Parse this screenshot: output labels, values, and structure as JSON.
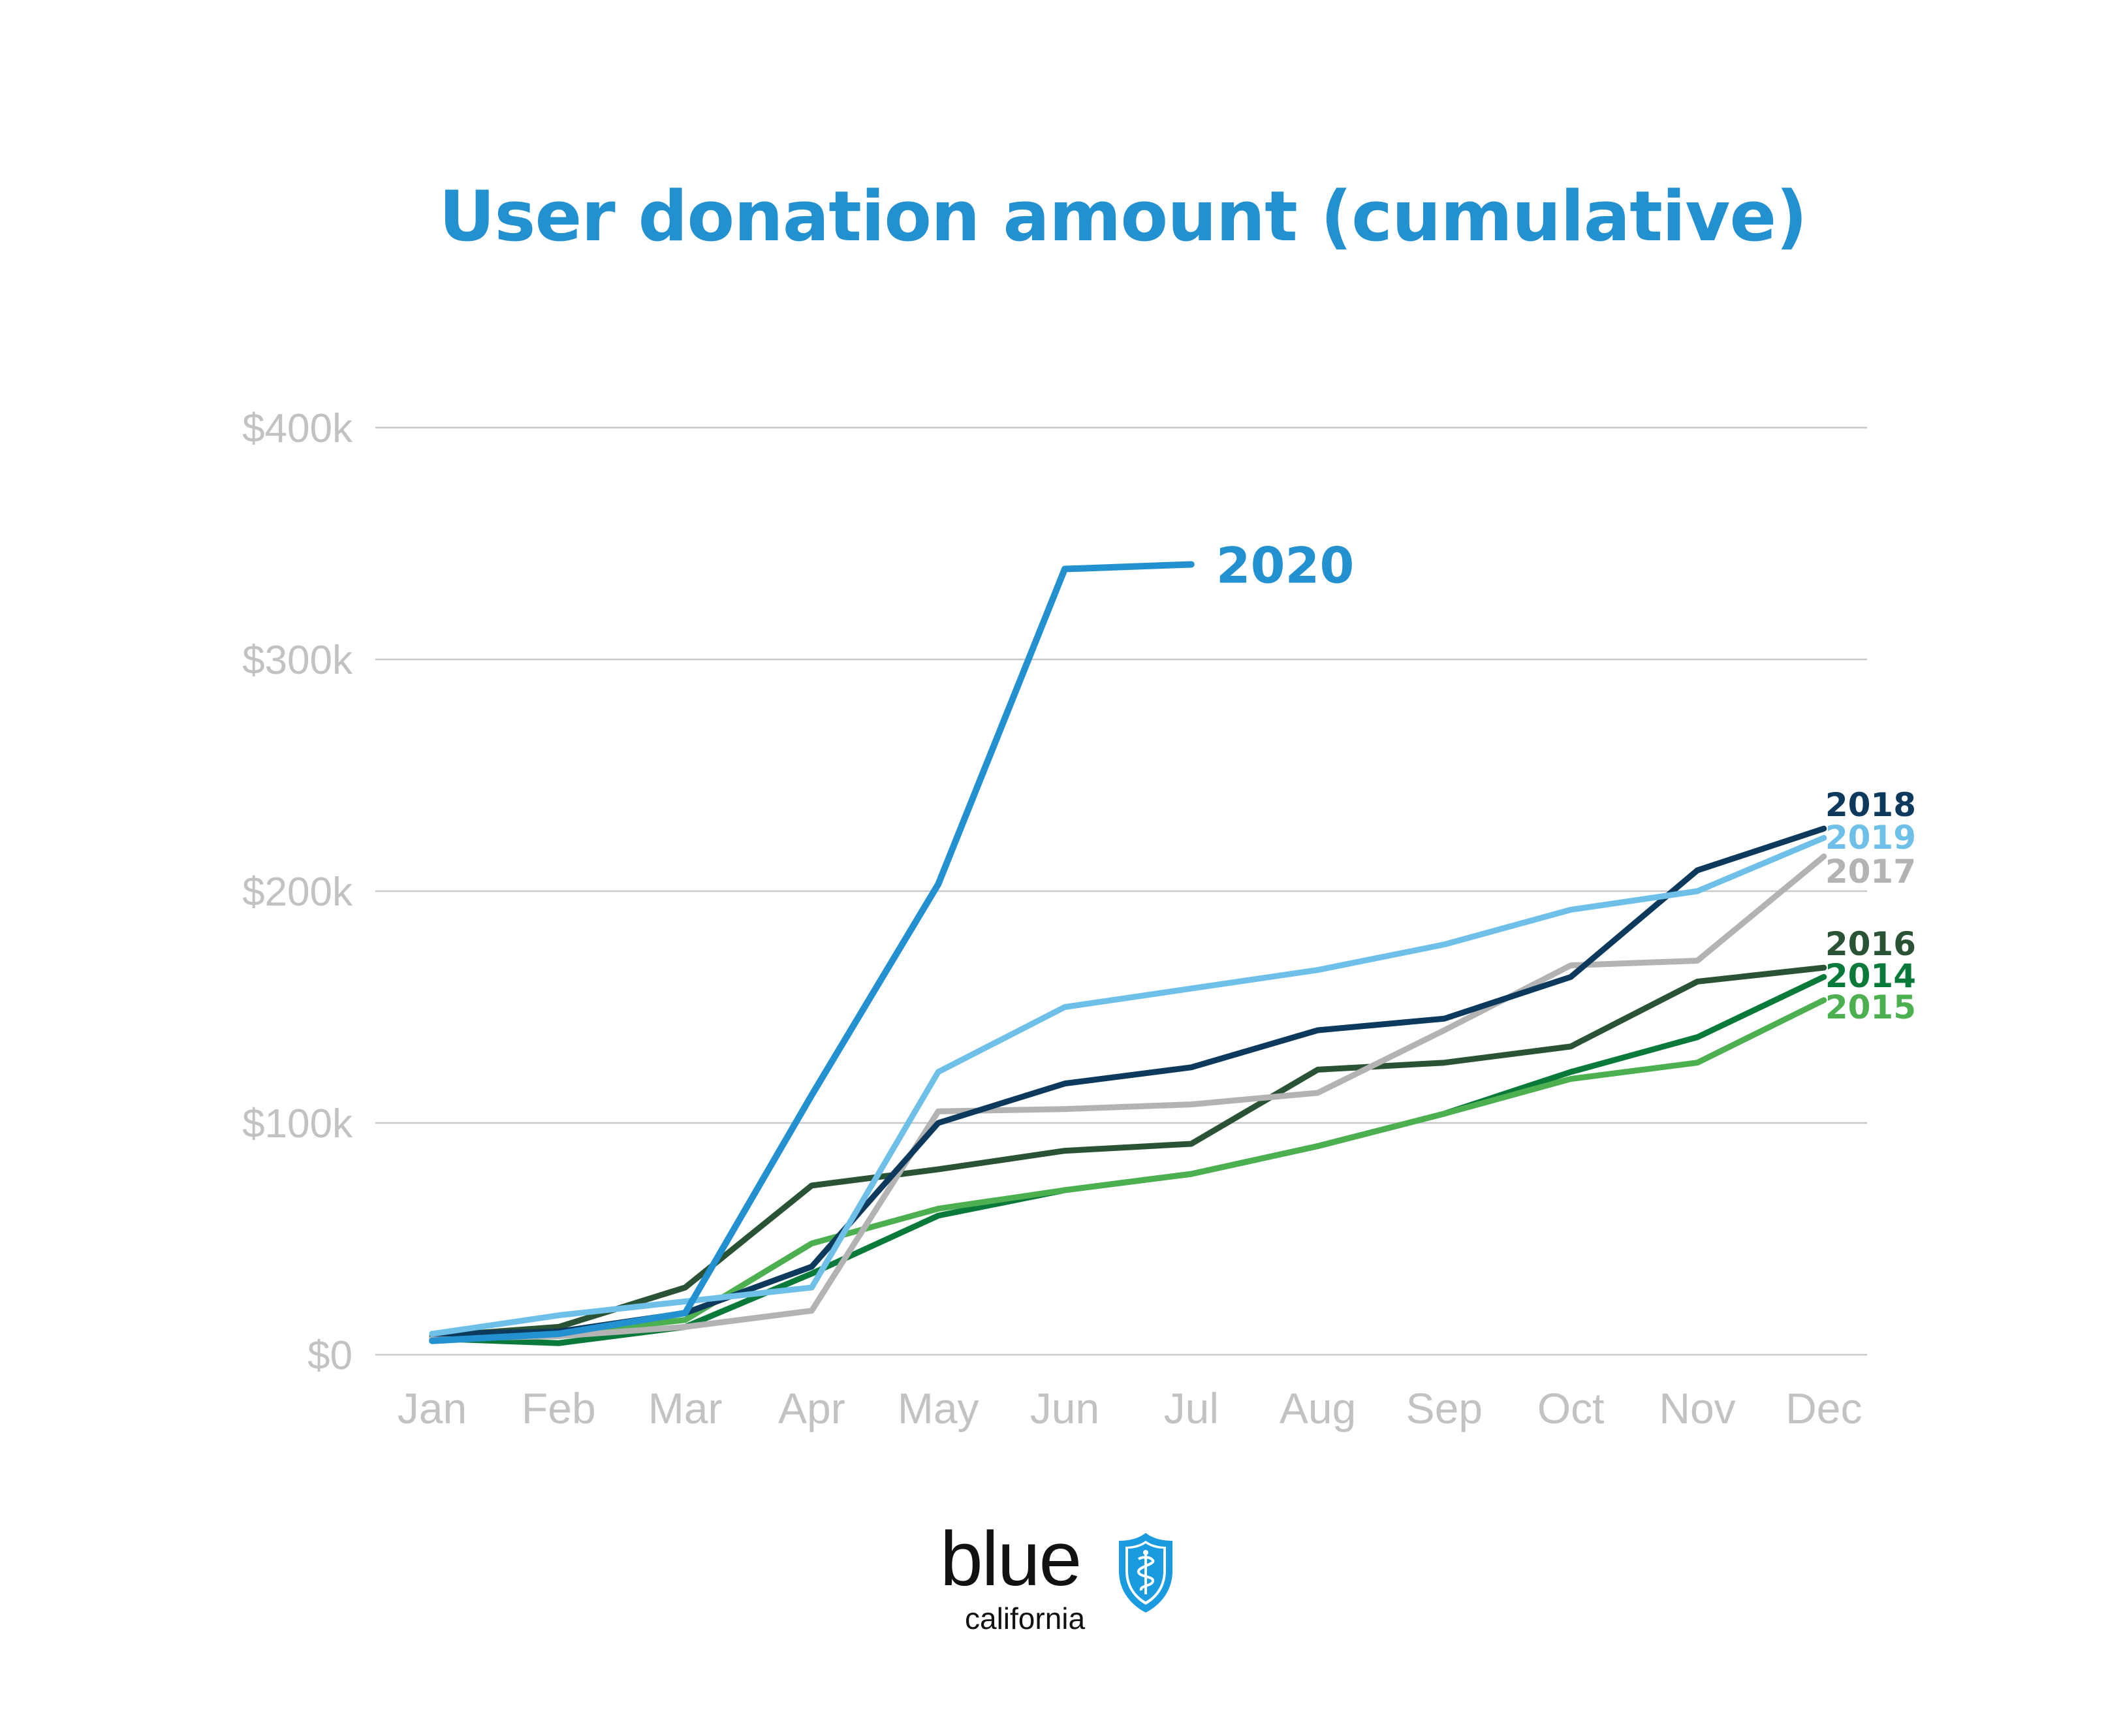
{
  "chart_data": {
    "type": "line",
    "title": "User donation amount (cumulative)",
    "xlabel": "",
    "ylabel": "",
    "categories": [
      "Jan",
      "Feb",
      "Mar",
      "Apr",
      "May",
      "Jun",
      "Jul",
      "Aug",
      "Sep",
      "Oct",
      "Nov",
      "Dec"
    ],
    "ylim": [
      0,
      400000
    ],
    "yticks": [
      0,
      100000,
      200000,
      300000,
      400000
    ],
    "ytick_labels": [
      "$0",
      "$100k",
      "$200k",
      "$300k",
      "$400k"
    ],
    "grid": true,
    "legend": "end-of-line labels",
    "series": [
      {
        "name": "2014",
        "color": "#0a7a3a",
        "values": [
          7000,
          5000,
          12000,
          35000,
          60000,
          71000,
          78000,
          90000,
          104000,
          122000,
          137000,
          163000
        ]
      },
      {
        "name": "2015",
        "color": "#4caf50",
        "values": [
          7000,
          9000,
          15000,
          48000,
          63000,
          71000,
          78000,
          90000,
          104000,
          119000,
          126000,
          153000
        ]
      },
      {
        "name": "2016",
        "color": "#2a5234",
        "values": [
          8000,
          12000,
          29000,
          73000,
          80000,
          88000,
          91000,
          123000,
          126000,
          133000,
          161000,
          167000
        ]
      },
      {
        "name": "2017",
        "color": "#b3b3b3",
        "values": [
          7000,
          8000,
          12000,
          19000,
          105000,
          106000,
          108000,
          113000,
          140000,
          168000,
          170000,
          215000
        ]
      },
      {
        "name": "2018",
        "color": "#0d3a5c",
        "values": [
          9000,
          10000,
          18000,
          38000,
          100000,
          117000,
          124000,
          140000,
          145000,
          163000,
          209000,
          227000
        ]
      },
      {
        "name": "2019",
        "color": "#6ec0e8",
        "values": [
          9000,
          17000,
          23000,
          29000,
          122000,
          150000,
          158000,
          166000,
          177000,
          192000,
          200000,
          223000
        ]
      },
      {
        "name": "2020",
        "color": "#2390cf",
        "values": [
          6000,
          9000,
          18000,
          112000,
          203000,
          339000,
          341000,
          null,
          null,
          null,
          null,
          null
        ]
      }
    ]
  },
  "logo": {
    "word": "blue",
    "sub": "california",
    "mark": "shield-caduceus-icon",
    "color": "#1a9be0"
  }
}
